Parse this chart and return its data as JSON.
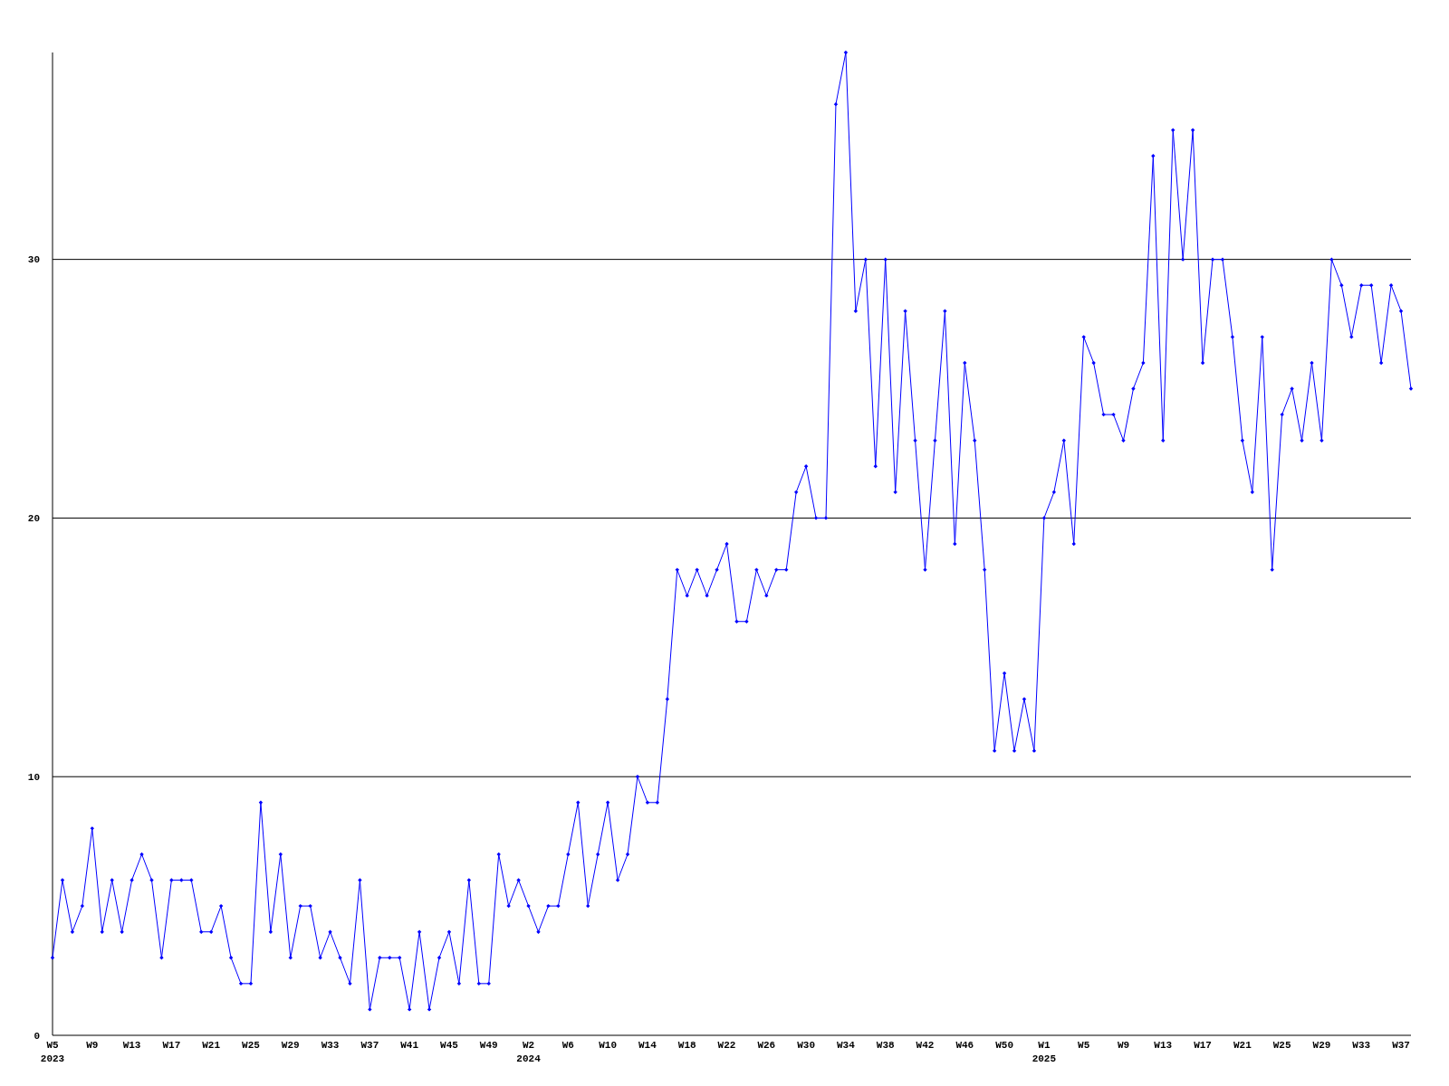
{
  "chart_data": {
    "type": "line",
    "categories": [
      "W5\n2023",
      null,
      null,
      null,
      "W9",
      null,
      null,
      null,
      "W13",
      null,
      null,
      null,
      "W17",
      null,
      null,
      null,
      "W21",
      null,
      null,
      null,
      "W25",
      null,
      null,
      null,
      "W29",
      null,
      null,
      null,
      "W33",
      null,
      null,
      null,
      "W37",
      null,
      null,
      null,
      "W41",
      null,
      null,
      null,
      "W45",
      null,
      null,
      null,
      "W49",
      null,
      null,
      null,
      "W2\n2024",
      null,
      null,
      null,
      "W6",
      null,
      null,
      null,
      "W10",
      null,
      null,
      null,
      "W14",
      null,
      null,
      null,
      "W18",
      null,
      null,
      null,
      "W22",
      null,
      null,
      null,
      "W26",
      null,
      null,
      null,
      "W30",
      null,
      null,
      null,
      "W34",
      null,
      null,
      null,
      "W38",
      null,
      null,
      null,
      "W42",
      null,
      null,
      null,
      "W46",
      null,
      null,
      null,
      "W50",
      null,
      null,
      null,
      "W1\n2025",
      null,
      null,
      null,
      "W5",
      null,
      null,
      null,
      "W9",
      null,
      null,
      null,
      "W13",
      null,
      null,
      null,
      "W17",
      null,
      null,
      null,
      "W21",
      null,
      null,
      null,
      "W25",
      null,
      null,
      null,
      "W29",
      null,
      null,
      null,
      "W33",
      null,
      null,
      null,
      "W37",
      null
    ],
    "series": [
      {
        "color": "#0000ff",
        "values": [
          3,
          6,
          4,
          5,
          8,
          4,
          6,
          4,
          6,
          7,
          6,
          3,
          6,
          6,
          6,
          4,
          4,
          5,
          3,
          2,
          2,
          9,
          4,
          7,
          3,
          5,
          5,
          3,
          4,
          3,
          2,
          6,
          1,
          3,
          3,
          3,
          1,
          4,
          1,
          3,
          4,
          2,
          6,
          2,
          2,
          7,
          5,
          6,
          5,
          4,
          5,
          5,
          7,
          9,
          5,
          7,
          9,
          6,
          7,
          10,
          9,
          9,
          13,
          18,
          17,
          18,
          17,
          18,
          19,
          16,
          16,
          18,
          17,
          18,
          18,
          21,
          22,
          20,
          20,
          36,
          38,
          28,
          30,
          22,
          30,
          21,
          28,
          23,
          18,
          23,
          28,
          19,
          26,
          23,
          18,
          11,
          14,
          11,
          13,
          11,
          20,
          21,
          23,
          19,
          27,
          26,
          24,
          24,
          23,
          25,
          26,
          34,
          23,
          35,
          30,
          35,
          26,
          30,
          30,
          27,
          23,
          21,
          27,
          18,
          24,
          25,
          23,
          26,
          23,
          30,
          29,
          27,
          29,
          29,
          26,
          29,
          28,
          25
        ]
      }
    ],
    "ylim": [
      0,
      38
    ],
    "yticks": [
      0,
      10,
      20,
      30
    ],
    "grid": "y",
    "marker": "diamond",
    "line_style": "solid"
  }
}
